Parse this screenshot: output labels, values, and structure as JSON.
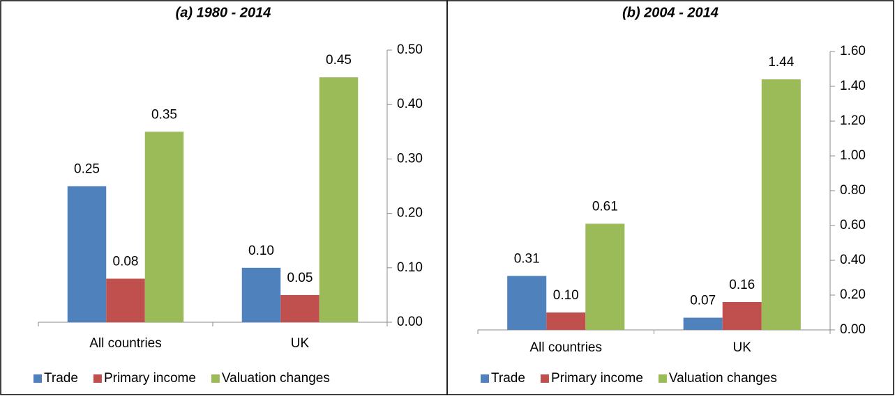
{
  "chart_data": [
    {
      "type": "bar",
      "title": "(a) 1980 - 2014",
      "categories": [
        "All countries",
        "UK"
      ],
      "series": [
        {
          "name": "Trade",
          "color": "#4f81bd",
          "values": [
            0.25,
            0.1
          ],
          "value_labels": [
            "0.25",
            "0.10"
          ]
        },
        {
          "name": "Primary income",
          "color": "#c0504d",
          "values": [
            0.08,
            0.05
          ],
          "value_labels": [
            "0.08",
            "0.05"
          ]
        },
        {
          "name": "Valuation changes",
          "color": "#9bbb59",
          "values": [
            0.35,
            0.45
          ],
          "value_labels": [
            "0.35",
            "0.45"
          ]
        }
      ],
      "ylim": [
        0,
        0.5
      ],
      "yticks": [
        {
          "value": 0,
          "label": "0.00"
        },
        {
          "value": 0.1,
          "label": "0.10"
        },
        {
          "value": 0.2,
          "label": "0.20"
        },
        {
          "value": 0.3,
          "label": "0.30"
        },
        {
          "value": 0.4,
          "label": "0.40"
        },
        {
          "value": 0.5,
          "label": "0.50"
        }
      ],
      "legend": "bottom"
    },
    {
      "type": "bar",
      "title": "(b) 2004 - 2014",
      "categories": [
        "All countries",
        "UK"
      ],
      "series": [
        {
          "name": "Trade",
          "color": "#4f81bd",
          "values": [
            0.31,
            0.07
          ],
          "value_labels": [
            "0.31",
            "0.07"
          ]
        },
        {
          "name": "Primary income",
          "color": "#c0504d",
          "values": [
            0.1,
            0.16
          ],
          "value_labels": [
            "0.10",
            "0.16"
          ]
        },
        {
          "name": "Valuation changes",
          "color": "#9bbb59",
          "values": [
            0.61,
            1.44
          ],
          "value_labels": [
            "0.61",
            "1.44"
          ]
        }
      ],
      "ylim": [
        0,
        1.6
      ],
      "yticks": [
        {
          "value": 0,
          "label": "0.00"
        },
        {
          "value": 0.2,
          "label": "0.20"
        },
        {
          "value": 0.4,
          "label": "0.40"
        },
        {
          "value": 0.6,
          "label": "0.60"
        },
        {
          "value": 0.8,
          "label": "0.80"
        },
        {
          "value": 1,
          "label": "1.00"
        },
        {
          "value": 1.2,
          "label": "1.20"
        },
        {
          "value": 1.4,
          "label": "1.40"
        },
        {
          "value": 1.6,
          "label": "1.60"
        }
      ],
      "legend": "bottom"
    }
  ]
}
